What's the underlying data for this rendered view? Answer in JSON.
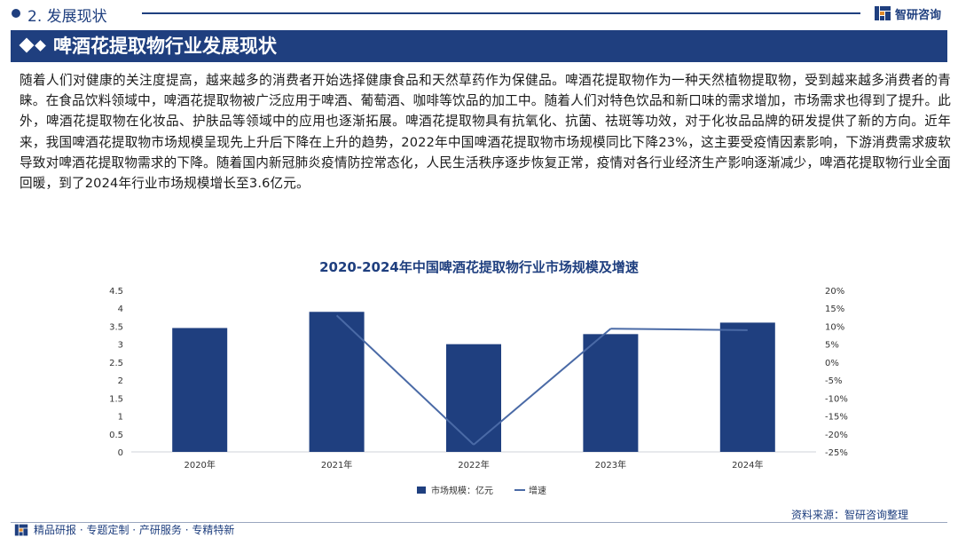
{
  "header": {
    "section_title": "2. 发展现状",
    "brand_name": "智研咨询"
  },
  "title": "啤酒花提取物行业发展现状",
  "paragraph": "随着人们对健康的关注度提高，越来越多的消费者开始选择健康食品和天然草药作为保健品。啤酒花提取物作为一种天然植物提取物，受到越来越多消费者的青睐。在食品饮料领域中，啤酒花提取物被广泛应用于啤酒、葡萄酒、咖啡等饮品的加工中。随着人们对特色饮品和新口味的需求增加，市场需求也得到了提升。此外，啤酒花提取物在化妆品、护肤品等领域中的应用也逐渐拓展。啤酒花提取物具有抗氧化、抗菌、祛斑等功效，对于化妆品品牌的研发提供了新的方向。近年来，我国啤酒花提取物市场规模呈现先上升后下降在上升的趋势，2022年中国啤酒花提取物市场规模同比下降23%，这主要受疫情因素影响，下游消费需求疲软导致对啤酒花提取物需求的下降。随着国内新冠肺炎疫情防控常态化，人民生活秩序逐步恢复正常，疫情对各行业经济生产影响逐渐减少，啤酒花提取物行业全面回暖，到了2024年行业市场规模增长至3.6亿元。",
  "chart_data": {
    "type": "bar",
    "title": "2020-2024年中国啤酒花提取物行业市场规模及增速",
    "categories": [
      "2020年",
      "2021年",
      "2022年",
      "2023年",
      "2024年"
    ],
    "series": [
      {
        "name": "市场规模：亿元",
        "type": "bar",
        "axis": "left",
        "values": [
          3.45,
          3.9,
          3.0,
          3.28,
          3.6
        ],
        "color": "#1f3f7f"
      },
      {
        "name": "增速",
        "type": "line",
        "axis": "right",
        "values": [
          null,
          13.0,
          -23.0,
          9.3,
          8.9
        ],
        "color": "#4a6aa6"
      }
    ],
    "y_left": {
      "min": 0,
      "max": 4.5,
      "ticks": [
        "0",
        "0.5",
        "1",
        "1.5",
        "2",
        "2.5",
        "3",
        "3.5",
        "4",
        "4.5"
      ]
    },
    "y_right": {
      "min": -25,
      "max": 20,
      "ticks": [
        "-25%",
        "-20%",
        "-15%",
        "-10%",
        "-5%",
        "0%",
        "5%",
        "10%",
        "15%",
        "20%"
      ]
    },
    "legend_position": "bottom",
    "grid": false
  },
  "footer": {
    "source": "资料来源：智研咨询整理",
    "tagline": "精品研报 · 专题定制 · 产研服务 · 专精特新"
  }
}
